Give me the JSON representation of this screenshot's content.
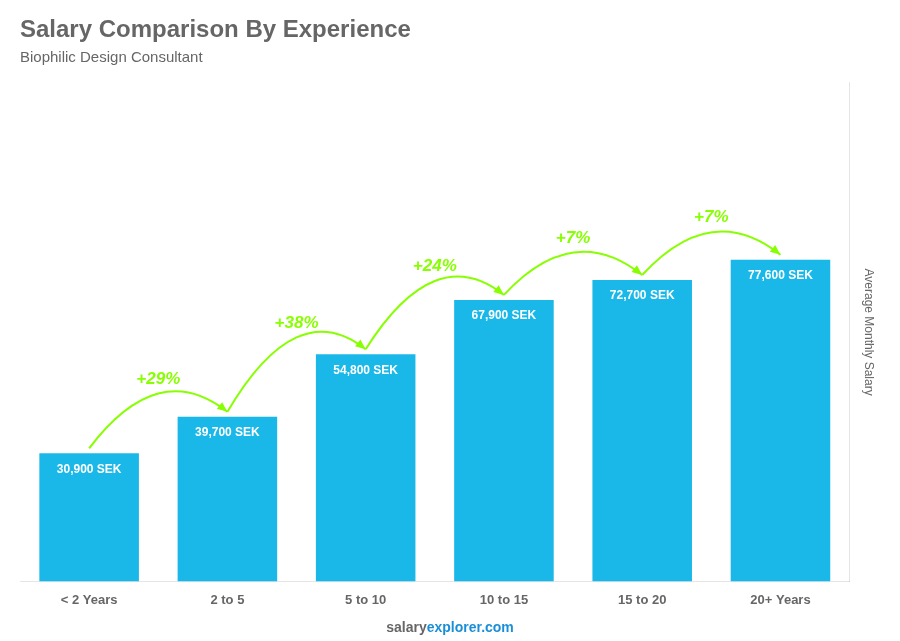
{
  "chart_data": {
    "type": "bar",
    "title": "Salary Comparison By Experience",
    "subtitle": "Biophilic Design Consultant",
    "ylabel": "Average Monthly Salary",
    "footer": [
      "salary",
      "explorer.com"
    ],
    "categories": [
      "< 2 Years",
      "2 to 5",
      "5 to 10",
      "10 to 15",
      "15 to 20",
      "20+ Years"
    ],
    "values": [
      30900,
      39700,
      54800,
      67900,
      72700,
      77600
    ],
    "value_labels": [
      "30,900 SEK",
      "39,700 SEK",
      "54,800 SEK",
      "67,900 SEK",
      "72,700 SEK",
      "77,600 SEK"
    ],
    "data_labels": true,
    "annotations": [
      {
        "text": "+29%",
        "color": "#88ff00"
      },
      {
        "text": "+38%",
        "color": "#88ff00"
      },
      {
        "text": "+24%",
        "color": "#88ff00"
      },
      {
        "text": "+7%",
        "color": "#88ff00"
      },
      {
        "text": "+7%",
        "color": "#88ff00"
      }
    ],
    "color": "#1ab8e8",
    "ylim": [
      0,
      120280
    ],
    "grid": false,
    "tick_labels": "x"
  }
}
